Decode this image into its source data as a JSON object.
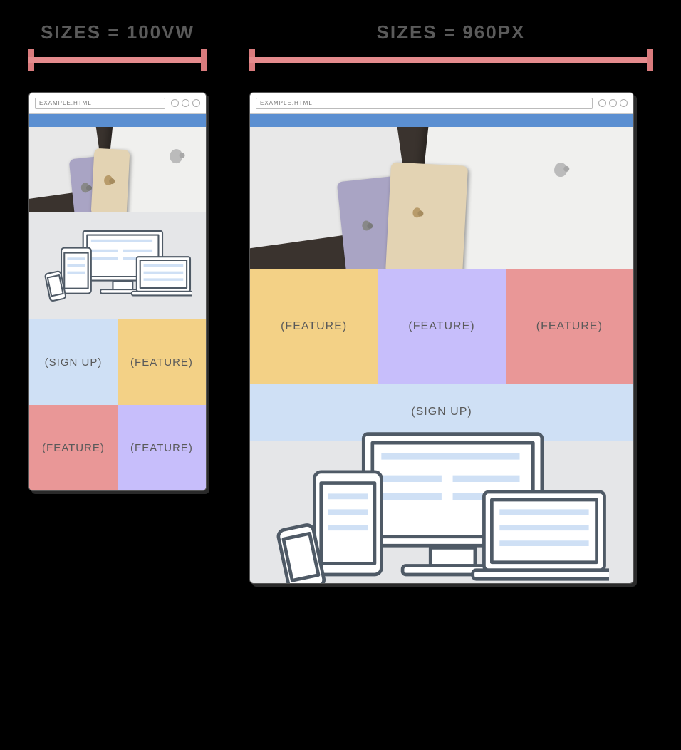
{
  "headings": {
    "left": "SIZES = 100VW",
    "right": "SIZES = 960PX"
  },
  "ruler": {
    "color": "#e58b8d",
    "cap_color": "#d97b7d"
  },
  "address_bar": "EXAMPLE.HTML",
  "bluebar_color": "#5b8fd1",
  "colors": {
    "blue": "#cfe0f5",
    "yellow": "#f3d186",
    "red": "#e99797",
    "purple": "#c7befb",
    "panel": "#e5e6e8"
  },
  "labels": {
    "signup": "(SIGN UP)",
    "feature": "(FEATURE)"
  },
  "narrow_grid": [
    {
      "color": "blue",
      "label": "signup"
    },
    {
      "color": "yellow",
      "label": "feature"
    },
    {
      "color": "red",
      "label": "feature"
    },
    {
      "color": "purple",
      "label": "feature"
    }
  ],
  "wide_grid": [
    {
      "color": "yellow",
      "label": "feature"
    },
    {
      "color": "purple",
      "label": "feature"
    },
    {
      "color": "red",
      "label": "feature"
    }
  ],
  "wide_signup_color": "blue",
  "illus_line": "#4f5a66",
  "illus_fill": "#ffffff",
  "illus_accent": "#cfe0f5"
}
